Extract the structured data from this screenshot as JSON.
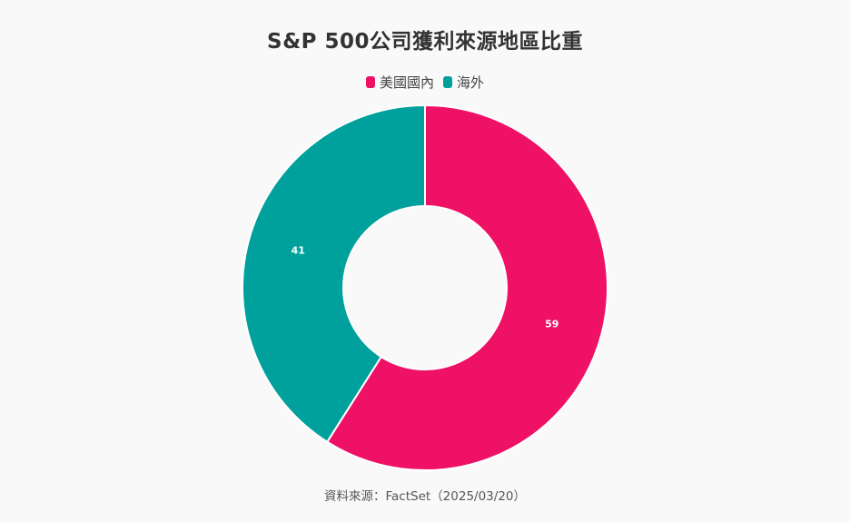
{
  "title": "S&P 500公司獲利來源地區比重",
  "source": "資料來源：FactSet（2025/03/20）",
  "chart_data": {
    "type": "pie",
    "donut": true,
    "title": "S&P 500公司獲利來源地區比重",
    "legend_position": "top-center",
    "series": [
      {
        "name": "美國國內",
        "value": 59,
        "color": "#ee1166"
      },
      {
        "name": "海外",
        "value": 41,
        "color": "#00a19c"
      }
    ]
  }
}
